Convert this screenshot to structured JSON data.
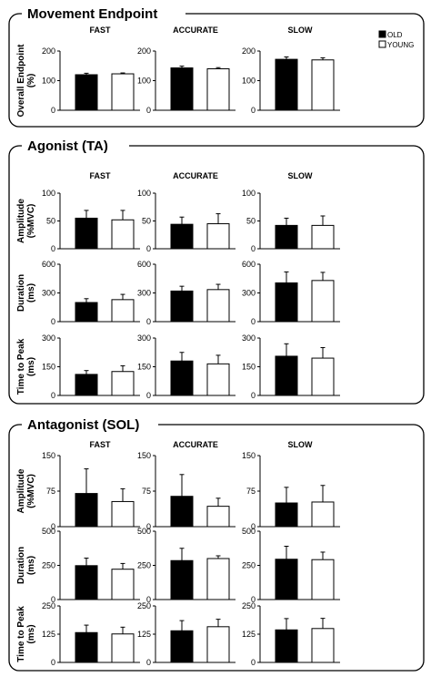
{
  "legend": {
    "items": [
      {
        "label": "OLD",
        "color": "#000000"
      },
      {
        "label": "YOUNG",
        "color": "#ffffff"
      }
    ]
  },
  "conditions": [
    "FAST",
    "ACCURATE",
    "SLOW"
  ],
  "panels": [
    {
      "title": "Movement Endpoint",
      "rows": [
        {
          "ylabel": [
            "Overall Endpoint",
            "(%)"
          ],
          "yticks": [
            0,
            100,
            200
          ],
          "ymax": 200,
          "groups": [
            {
              "old": 120,
              "old_err": 5,
              "young": 123,
              "young_err": 3
            },
            {
              "old": 143,
              "old_err": 6,
              "young": 140,
              "young_err": 4
            },
            {
              "old": 172,
              "old_err": 8,
              "young": 170,
              "young_err": 7
            }
          ]
        }
      ]
    },
    {
      "title": "Agonist (TA)",
      "rows": [
        {
          "ylabel": [
            "Amplitude",
            "(%MVC)"
          ],
          "yticks": [
            0,
            50,
            100
          ],
          "ymax": 100,
          "groups": [
            {
              "old": 55,
              "old_err": 14,
              "young": 52,
              "young_err": 17
            },
            {
              "old": 44,
              "old_err": 13,
              "young": 45,
              "young_err": 18
            },
            {
              "old": 42,
              "old_err": 13,
              "young": 42,
              "young_err": 17
            }
          ]
        },
        {
          "ylabel": [
            "Duration",
            "(ms)"
          ],
          "yticks": [
            0,
            300,
            600
          ],
          "ymax": 600,
          "groups": [
            {
              "old": 200,
              "old_err": 40,
              "young": 230,
              "young_err": 55
            },
            {
              "old": 320,
              "old_err": 50,
              "young": 335,
              "young_err": 55
            },
            {
              "old": 405,
              "old_err": 115,
              "young": 430,
              "young_err": 85
            }
          ]
        },
        {
          "ylabel": [
            "Time to Peak",
            "(ms)"
          ],
          "yticks": [
            0,
            150,
            300
          ],
          "ymax": 300,
          "groups": [
            {
              "old": 110,
              "old_err": 20,
              "young": 125,
              "young_err": 30
            },
            {
              "old": 180,
              "old_err": 45,
              "young": 165,
              "young_err": 45
            },
            {
              "old": 205,
              "old_err": 65,
              "young": 195,
              "young_err": 55
            }
          ]
        }
      ]
    },
    {
      "title": "Antagonist (SOL)",
      "rows": [
        {
          "ylabel": [
            "Amplitude",
            "(%MVC)"
          ],
          "yticks": [
            0,
            75,
            150
          ],
          "ymax": 150,
          "groups": [
            {
              "old": 70,
              "old_err": 52,
              "young": 53,
              "young_err": 27
            },
            {
              "old": 64,
              "old_err": 46,
              "young": 43,
              "young_err": 17
            },
            {
              "old": 50,
              "old_err": 33,
              "young": 52,
              "young_err": 35
            }
          ]
        },
        {
          "ylabel": [
            "Duration",
            "(ms)"
          ],
          "yticks": [
            0,
            250,
            500
          ],
          "ymax": 500,
          "groups": [
            {
              "old": 248,
              "old_err": 55,
              "young": 222,
              "young_err": 42
            },
            {
              "old": 285,
              "old_err": 90,
              "young": 300,
              "young_err": 20
            },
            {
              "old": 295,
              "old_err": 95,
              "young": 292,
              "young_err": 55
            }
          ]
        },
        {
          "ylabel": [
            "Time to Peak",
            "(ms)"
          ],
          "yticks": [
            0,
            125,
            250
          ],
          "ymax": 250,
          "groups": [
            {
              "old": 132,
              "old_err": 33,
              "young": 126,
              "young_err": 30
            },
            {
              "old": 140,
              "old_err": 45,
              "young": 158,
              "young_err": 33
            },
            {
              "old": 144,
              "old_err": 50,
              "young": 150,
              "young_err": 45
            }
          ]
        }
      ]
    }
  ],
  "chart_data": {
    "type": "bar",
    "categories": [
      "FAST",
      "ACCURATE",
      "SLOW"
    ],
    "legend": [
      "OLD",
      "YOUNG"
    ],
    "legend_position": "top-right",
    "grid": false,
    "subplots": [
      {
        "panel": "Movement Endpoint",
        "ylabel": "Overall Endpoint (%)",
        "ylim": [
          0,
          200
        ],
        "series": [
          {
            "name": "OLD",
            "values": [
              120,
              143,
              172
            ],
            "errors": [
              5,
              6,
              8
            ]
          },
          {
            "name": "YOUNG",
            "values": [
              123,
              140,
              170
            ],
            "errors": [
              3,
              4,
              7
            ]
          }
        ]
      },
      {
        "panel": "Agonist (TA)",
        "ylabel": "Amplitude (%MVC)",
        "ylim": [
          0,
          100
        ],
        "series": [
          {
            "name": "OLD",
            "values": [
              55,
              44,
              42
            ],
            "errors": [
              14,
              13,
              13
            ]
          },
          {
            "name": "YOUNG",
            "values": [
              52,
              45,
              42
            ],
            "errors": [
              17,
              18,
              17
            ]
          }
        ]
      },
      {
        "panel": "Agonist (TA)",
        "ylabel": "Duration (ms)",
        "ylim": [
          0,
          600
        ],
        "series": [
          {
            "name": "OLD",
            "values": [
              200,
              320,
              405
            ],
            "errors": [
              40,
              50,
              115
            ]
          },
          {
            "name": "YOUNG",
            "values": [
              230,
              335,
              430
            ],
            "errors": [
              55,
              55,
              85
            ]
          }
        ]
      },
      {
        "panel": "Agonist (TA)",
        "ylabel": "Time to Peak (ms)",
        "ylim": [
          0,
          300
        ],
        "series": [
          {
            "name": "OLD",
            "values": [
              110,
              180,
              205
            ],
            "errors": [
              20,
              45,
              65
            ]
          },
          {
            "name": "YOUNG",
            "values": [
              125,
              165,
              195
            ],
            "errors": [
              30,
              45,
              55
            ]
          }
        ]
      },
      {
        "panel": "Antagonist (SOL)",
        "ylabel": "Amplitude (%MVC)",
        "ylim": [
          0,
          150
        ],
        "series": [
          {
            "name": "OLD",
            "values": [
              70,
              64,
              50
            ],
            "errors": [
              52,
              46,
              33
            ]
          },
          {
            "name": "YOUNG",
            "values": [
              53,
              43,
              52
            ],
            "errors": [
              27,
              17,
              35
            ]
          }
        ]
      },
      {
        "panel": "Antagonist (SOL)",
        "ylabel": "Duration (ms)",
        "ylim": [
          0,
          500
        ],
        "series": [
          {
            "name": "OLD",
            "values": [
              248,
              285,
              295
            ],
            "errors": [
              55,
              90,
              95
            ]
          },
          {
            "name": "YOUNG",
            "values": [
              222,
              300,
              292
            ],
            "errors": [
              42,
              20,
              55
            ]
          }
        ]
      },
      {
        "panel": "Antagonist (SOL)",
        "ylabel": "Time to Peak (ms)",
        "ylim": [
          0,
          250
        ],
        "series": [
          {
            "name": "OLD",
            "values": [
              132,
              140,
              144
            ],
            "errors": [
              33,
              45,
              50
            ]
          },
          {
            "name": "YOUNG",
            "values": [
              126,
              158,
              150
            ],
            "errors": [
              30,
              33,
              45
            ]
          }
        ]
      }
    ]
  }
}
